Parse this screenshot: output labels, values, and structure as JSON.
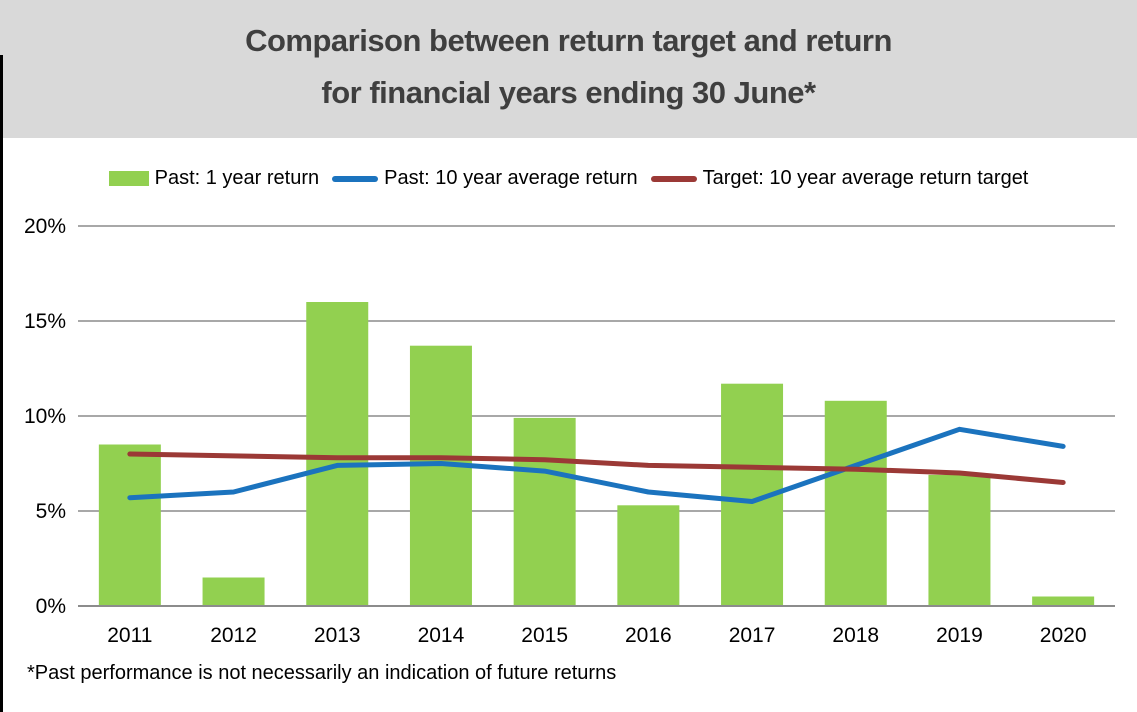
{
  "header": {
    "title_line1": "Comparison between return target and return",
    "title_line2": "for financial years ending 30 June*"
  },
  "legend": [
    {
      "label": "Past: 1 year return",
      "swatch": "box",
      "color": "#92D050"
    },
    {
      "label": "Past: 10 year average return",
      "swatch": "line",
      "color": "#1B73BE"
    },
    {
      "label": "Target: 10 year average return target",
      "swatch": "line",
      "color": "#9B3936"
    }
  ],
  "footnote": "*Past performance is not necessarily an indication of future returns",
  "colors": {
    "header_background": "#D9D9D9",
    "title_text": "#3F3F3F",
    "gridline": "#8C8C8C",
    "bar_green": "#92D050",
    "line_blue": "#1B73BE",
    "line_red": "#9B3936"
  },
  "chart_data": {
    "type": "combo",
    "title": "Comparison between return target and return for financial years ending 30 June*",
    "categories": [
      "2011",
      "2012",
      "2013",
      "2014",
      "2015",
      "2016",
      "2017",
      "2018",
      "2019",
      "2020"
    ],
    "series": [
      {
        "name": "Past: 1 year return",
        "type": "bar",
        "color": "#92D050",
        "values": [
          8.5,
          1.5,
          16.0,
          13.7,
          9.9,
          5.3,
          11.7,
          10.8,
          6.9,
          0.5
        ]
      },
      {
        "name": "Past: 10 year average return",
        "type": "line",
        "color": "#1B73BE",
        "values": [
          5.7,
          6.0,
          7.4,
          7.5,
          7.1,
          6.0,
          5.5,
          7.4,
          9.3,
          8.4
        ]
      },
      {
        "name": "Target: 10 year average return target",
        "type": "line",
        "color": "#9B3936",
        "values": [
          8.0,
          7.9,
          7.8,
          7.8,
          7.7,
          7.4,
          7.3,
          7.2,
          7.0,
          6.5
        ]
      }
    ],
    "xlabel": "",
    "ylabel": "",
    "ylim": [
      0,
      20
    ],
    "yticks": [
      {
        "v": 0,
        "label": "0%"
      },
      {
        "v": 5,
        "label": "5%"
      },
      {
        "v": 10,
        "label": "10%"
      },
      {
        "v": 15,
        "label": "15%"
      },
      {
        "v": 20,
        "label": "20%"
      }
    ],
    "grid": true,
    "legend_position": "top"
  }
}
